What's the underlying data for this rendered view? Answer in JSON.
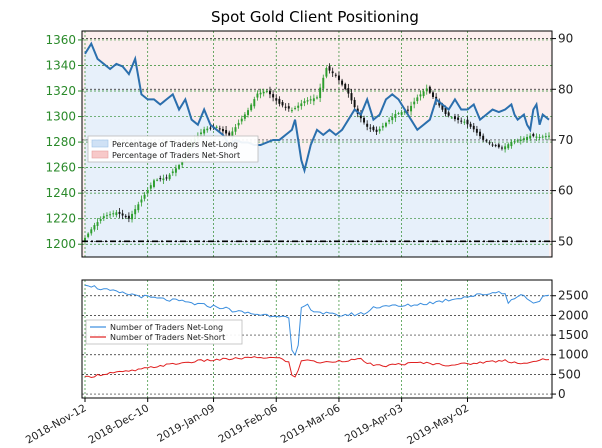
{
  "chart_data": [
    {
      "type": "candlestick",
      "title": "Spot Gold Client Positioning",
      "y_left_ticks": [
        1200,
        1220,
        1240,
        1260,
        1280,
        1300,
        1320,
        1340,
        1360
      ],
      "y_left_lim": [
        1190,
        1367
      ],
      "y_right_ticks": [
        50,
        60,
        70,
        80,
        90
      ],
      "y_right_lim": [
        46.9,
        91.5
      ],
      "x_tick_labels": [
        "2018-Nov-12",
        "2018-Dec-10",
        "2019-Jan-09",
        "2019-Feb-06",
        "2019-Mar-06",
        "2019-Apr-03",
        "2019-May-02"
      ],
      "grid": true,
      "legend": {
        "placement": "center-left",
        "entries": [
          "Percentage of Traders Net-Long",
          "Percentage of Traders Net-Short"
        ]
      },
      "reference_line": 50,
      "price_anchors": [
        [
          0,
          1205
        ],
        [
          3,
          1215
        ],
        [
          6,
          1222
        ],
        [
          10,
          1225
        ],
        [
          14,
          1220
        ],
        [
          18,
          1235
        ],
        [
          22,
          1250
        ],
        [
          26,
          1252
        ],
        [
          30,
          1262
        ],
        [
          34,
          1280
        ],
        [
          38,
          1290
        ],
        [
          42,
          1292
        ],
        [
          46,
          1285
        ],
        [
          49,
          1295
        ],
        [
          52,
          1305
        ],
        [
          55,
          1318
        ],
        [
          58,
          1320
        ],
        [
          62,
          1310
        ],
        [
          66,
          1305
        ],
        [
          70,
          1312
        ],
        [
          74,
          1315
        ],
        [
          77,
          1338
        ],
        [
          80,
          1332
        ],
        [
          84,
          1318
        ],
        [
          87,
          1302
        ],
        [
          90,
          1292
        ],
        [
          93,
          1288
        ],
        [
          96,
          1295
        ],
        [
          99,
          1302
        ],
        [
          103,
          1305
        ],
        [
          106,
          1315
        ],
        [
          109,
          1322
        ],
        [
          112,
          1312
        ],
        [
          115,
          1302
        ],
        [
          118,
          1298
        ],
        [
          121,
          1296
        ],
        [
          124,
          1290
        ],
        [
          127,
          1282
        ],
        [
          130,
          1278
        ],
        [
          133,
          1275
        ],
        [
          136,
          1280
        ],
        [
          139,
          1282
        ],
        [
          142,
          1285
        ],
        [
          145,
          1284
        ],
        [
          148,
          1285
        ]
      ],
      "pct_long_anchors": [
        [
          0,
          87
        ],
        [
          2,
          89
        ],
        [
          4,
          86
        ],
        [
          6,
          85
        ],
        [
          8,
          84
        ],
        [
          10,
          85
        ],
        [
          12,
          84.5
        ],
        [
          14,
          83
        ],
        [
          16,
          86
        ],
        [
          18,
          79
        ],
        [
          20,
          78
        ],
        [
          22,
          78
        ],
        [
          24,
          77
        ],
        [
          26,
          78
        ],
        [
          28,
          79
        ],
        [
          30,
          76
        ],
        [
          32,
          78
        ],
        [
          34,
          74
        ],
        [
          36,
          73
        ],
        [
          38,
          76
        ],
        [
          40,
          73
        ],
        [
          42,
          72
        ],
        [
          44,
          71
        ],
        [
          46,
          69
        ],
        [
          48,
          70
        ],
        [
          50,
          69.5
        ],
        [
          52,
          69.5
        ],
        [
          54,
          69
        ],
        [
          56,
          69
        ],
        [
          58,
          69.5
        ],
        [
          60,
          70
        ],
        [
          62,
          70
        ],
        [
          64,
          71
        ],
        [
          66,
          72
        ],
        [
          67,
          74
        ],
        [
          68,
          70
        ],
        [
          69,
          66
        ],
        [
          70,
          64
        ],
        [
          72,
          69
        ],
        [
          74,
          72
        ],
        [
          76,
          71
        ],
        [
          78,
          72
        ],
        [
          80,
          71
        ],
        [
          82,
          72
        ],
        [
          84,
          74
        ],
        [
          86,
          76
        ],
        [
          88,
          75
        ],
        [
          90,
          78
        ],
        [
          92,
          74
        ],
        [
          94,
          75
        ],
        [
          96,
          78
        ],
        [
          98,
          79
        ],
        [
          100,
          78
        ],
        [
          102,
          76
        ],
        [
          104,
          74
        ],
        [
          106,
          72
        ],
        [
          108,
          73
        ],
        [
          110,
          74
        ],
        [
          112,
          78
        ],
        [
          114,
          77
        ],
        [
          116,
          76
        ],
        [
          118,
          78
        ],
        [
          120,
          76
        ],
        [
          122,
          76
        ],
        [
          124,
          77
        ],
        [
          126,
          74
        ],
        [
          128,
          75
        ],
        [
          130,
          76
        ],
        [
          132,
          75.5
        ],
        [
          134,
          76
        ],
        [
          136,
          77
        ],
        [
          137,
          75
        ],
        [
          138,
          74
        ],
        [
          140,
          75
        ],
        [
          141,
          73
        ],
        [
          142,
          72
        ],
        [
          143,
          76
        ],
        [
          144,
          77
        ],
        [
          145,
          73
        ],
        [
          146,
          75
        ],
        [
          148,
          74
        ]
      ]
    },
    {
      "type": "line",
      "y_ticks": [
        0,
        500,
        1000,
        1500,
        2000,
        2500
      ],
      "y_lim": [
        -100,
        2900
      ],
      "grid": true,
      "legend": {
        "placement": "center-left",
        "entries": [
          "Number of Traders Net-Long",
          "Number of Traders Net-Short"
        ]
      },
      "series": [
        {
          "name": "Number of Traders Net-Long",
          "color": "#3b8ede",
          "anchors": [
            [
              0,
              2810
            ],
            [
              4,
              2700
            ],
            [
              8,
              2620
            ],
            [
              12,
              2560
            ],
            [
              16,
              2520
            ],
            [
              20,
              2460
            ],
            [
              24,
              2420
            ],
            [
              28,
              2380
            ],
            [
              32,
              2340
            ],
            [
              36,
              2280
            ],
            [
              40,
              2240
            ],
            [
              44,
              2200
            ],
            [
              48,
              2100
            ],
            [
              52,
              2060
            ],
            [
              56,
              2020
            ],
            [
              60,
              2000
            ],
            [
              63,
              2010
            ],
            [
              65,
              1900
            ],
            [
              66,
              1100
            ],
            [
              67,
              950
            ],
            [
              68,
              1200
            ],
            [
              69,
              2200
            ],
            [
              71,
              2250
            ],
            [
              73,
              2120
            ],
            [
              76,
              2060
            ],
            [
              80,
              2000
            ],
            [
              84,
              2020
            ],
            [
              88,
              2040
            ],
            [
              90,
              2080
            ],
            [
              92,
              2200
            ],
            [
              94,
              2230
            ],
            [
              97,
              2260
            ],
            [
              100,
              2220
            ],
            [
              104,
              2260
            ],
            [
              108,
              2300
            ],
            [
              112,
              2340
            ],
            [
              116,
              2400
            ],
            [
              120,
              2460
            ],
            [
              124,
              2500
            ],
            [
              128,
              2550
            ],
            [
              132,
              2600
            ],
            [
              134,
              2580
            ],
            [
              135,
              2300
            ],
            [
              137,
              2450
            ],
            [
              140,
              2530
            ],
            [
              143,
              2300
            ],
            [
              146,
              2450
            ],
            [
              148,
              2480
            ]
          ]
        },
        {
          "name": "Number of Traders Net-Short",
          "color": "#e02020",
          "anchors": [
            [
              0,
              420
            ],
            [
              4,
              480
            ],
            [
              8,
              540
            ],
            [
              12,
              560
            ],
            [
              16,
              600
            ],
            [
              20,
              660
            ],
            [
              24,
              720
            ],
            [
              28,
              760
            ],
            [
              32,
              800
            ],
            [
              36,
              840
            ],
            [
              40,
              860
            ],
            [
              44,
              880
            ],
            [
              48,
              900
            ],
            [
              52,
              920
            ],
            [
              56,
              930
            ],
            [
              60,
              920
            ],
            [
              63,
              900
            ],
            [
              65,
              800
            ],
            [
              66,
              480
            ],
            [
              67,
              420
            ],
            [
              68,
              600
            ],
            [
              69,
              860
            ],
            [
              71,
              880
            ],
            [
              73,
              820
            ],
            [
              76,
              800
            ],
            [
              80,
              840
            ],
            [
              84,
              860
            ],
            [
              88,
              880
            ],
            [
              92,
              720
            ],
            [
              96,
              720
            ],
            [
              100,
              760
            ],
            [
              104,
              780
            ],
            [
              108,
              800
            ],
            [
              112,
              760
            ],
            [
              116,
              740
            ],
            [
              120,
              760
            ],
            [
              124,
              780
            ],
            [
              128,
              820
            ],
            [
              132,
              840
            ],
            [
              134,
              860
            ],
            [
              136,
              820
            ],
            [
              140,
              780
            ],
            [
              144,
              820
            ],
            [
              146,
              880
            ],
            [
              148,
              860
            ]
          ]
        }
      ]
    }
  ]
}
